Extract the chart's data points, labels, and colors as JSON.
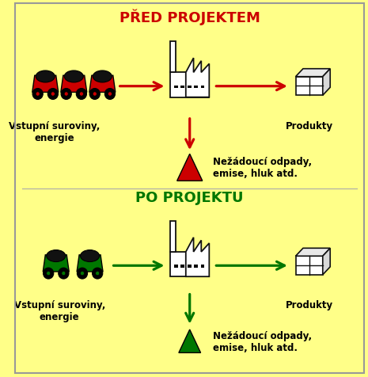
{
  "background_color": "#FFFF88",
  "border_color": "#999999",
  "title_top": "PŘED PROJEKTEM",
  "title_top_color": "#CC0000",
  "title_bottom": "PO PROJEKTU",
  "title_bottom_color": "#007700",
  "arrow_color_top": "#CC0000",
  "arrow_color_bottom": "#007700",
  "label_input": "Vstupní suroviny,\nenergie",
  "label_products": "Produkty",
  "label_waste": "Nežádoucí odpady,\nemise, hluk atd.",
  "cart_color_top": "#CC0000",
  "cart_color_bottom": "#007700",
  "coal_color": "#111111",
  "factory_fill": "#FFFFFF",
  "factory_outline": "#111111",
  "box_fill": "#FFFFFF",
  "box_outline": "#111111",
  "waste_cone_top": "#CC0000",
  "waste_cone_bottom": "#007700",
  "figw": 4.65,
  "figh": 4.77,
  "dpi": 100
}
